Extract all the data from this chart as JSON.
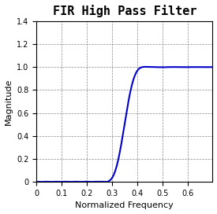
{
  "title": "FIR High Pass Filter",
  "xlabel": "Normalized Frequency",
  "ylabel": "Magnitude",
  "xlim": [
    0,
    0.7
  ],
  "ylim": [
    0,
    1.4
  ],
  "xticks": [
    0,
    0.1,
    0.2,
    0.3,
    0.4,
    0.5,
    0.6
  ],
  "yticks": [
    0,
    0.2,
    0.4,
    0.6,
    0.8,
    1.0,
    1.2,
    1.4
  ],
  "line_color": "#0000cc",
  "line_width": 1.5,
  "background_color": "#ffffff",
  "grid_color": "#888888",
  "grid_linestyle": "--",
  "title_fontsize": 11,
  "label_fontsize": 8,
  "tick_fontsize": 7
}
